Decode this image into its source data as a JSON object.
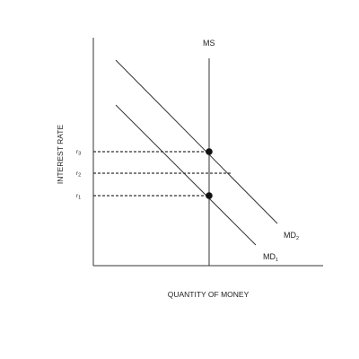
{
  "diagram": {
    "xlabel": "QUANTITY OF MONEY",
    "ylabel": "INTEREST RATE",
    "curves": {
      "ms": {
        "label": "MS"
      },
      "md1": {
        "label": "MD",
        "subscript": "1"
      },
      "md2": {
        "label": "MD",
        "subscript": "2"
      }
    },
    "rates": [
      {
        "label": "r",
        "subscript": "3"
      },
      {
        "label": "r",
        "subscript": "2"
      },
      {
        "label": "r",
        "subscript": "1"
      }
    ]
  }
}
